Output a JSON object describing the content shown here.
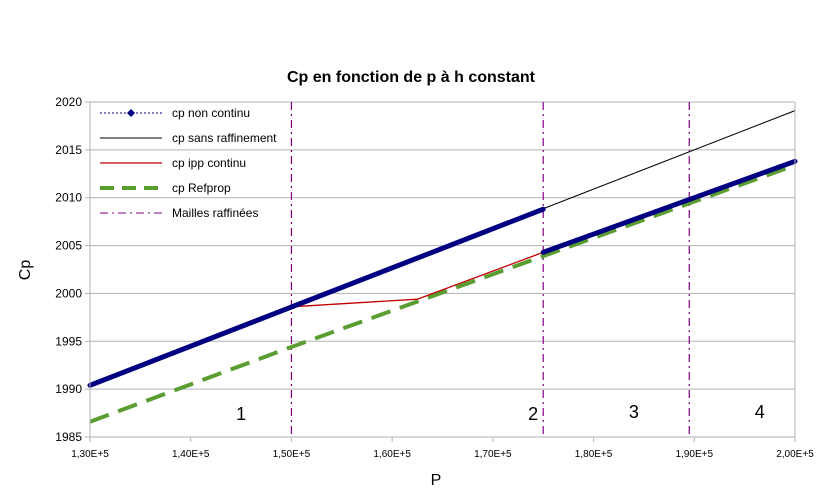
{
  "chart_data": {
    "type": "line",
    "title": "Cp en fonction de p à h constant",
    "xlabel": "P",
    "ylabel": "Cp",
    "xlim": [
      130000,
      200000
    ],
    "ylim": [
      1985,
      2020
    ],
    "x_ticks": [
      130000,
      140000,
      150000,
      160000,
      170000,
      180000,
      190000,
      200000
    ],
    "x_tick_labels": [
      "1,30E+5",
      "1,40E+5",
      "1,50E+5",
      "1,60E+5",
      "1,70E+5",
      "1,80E+5",
      "1,90E+5",
      "2,00E+5"
    ],
    "y_ticks": [
      1985,
      1990,
      1995,
      2000,
      2005,
      2010,
      2015,
      2020
    ],
    "y_tick_labels": [
      "1985",
      "1990",
      "1995",
      "2000",
      "2005",
      "2010",
      "2015",
      "2020"
    ],
    "grid": "horizontal",
    "legend_position": "top-left",
    "series": [
      {
        "name": "cp non continu",
        "color": "#000080",
        "style": "dotted-with-diamond-markers",
        "segments": [
          [
            [
              130000,
              1990.4
            ],
            [
              175000,
              2008.8
            ]
          ],
          [
            [
              175000,
              2004.3
            ],
            [
              200000,
              2013.8
            ]
          ]
        ]
      },
      {
        "name": "cp sans raffinement",
        "color": "#000000",
        "style": "solid-thin",
        "segments": [
          [
            [
              130000,
              1990.4
            ],
            [
              200000,
              2019.1
            ]
          ]
        ]
      },
      {
        "name": "cp ipp continu",
        "color": "#c00000",
        "style": "solid",
        "segments": [
          [
            [
              150000,
              1998.6
            ],
            [
              162500,
              1999.4
            ],
            [
              175000,
              2004.3
            ]
          ]
        ]
      },
      {
        "name": "cp Refprop",
        "color": "#5a9e32",
        "style": "dashed-thick",
        "segments": [
          [
            [
              130000,
              1986.6
            ],
            [
              150000,
              1994.4
            ],
            [
              175000,
              2003.9
            ],
            [
              200000,
              2013.4
            ]
          ]
        ]
      },
      {
        "name": "Mailles raffinées",
        "color": "#800080",
        "style": "dash-dot",
        "vertical_lines_x": [
          150000,
          175000,
          189500
        ]
      }
    ],
    "annotations": [
      {
        "text": "1",
        "x": 145000,
        "y": 1986.8
      },
      {
        "text": "2",
        "x": 174000,
        "y": 1986.8
      },
      {
        "text": "3",
        "x": 184000,
        "y": 1987.0
      },
      {
        "text": "4",
        "x": 196500,
        "y": 1987.0
      }
    ]
  }
}
